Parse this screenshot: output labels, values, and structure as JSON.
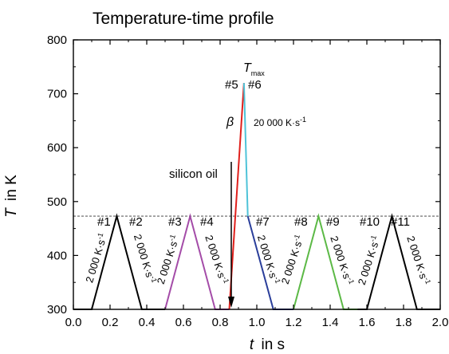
{
  "chart_data": {
    "type": "line",
    "title": "Temperature-time profile",
    "xlabel": {
      "italic": "t",
      "rest": "in s"
    },
    "ylabel": {
      "italic": "T",
      "rest": "in K"
    },
    "xlim": [
      0.0,
      2.0
    ],
    "ylim": [
      300,
      800
    ],
    "xticks": [
      "0.0",
      "0.2",
      "0.4",
      "0.6",
      "0.8",
      "1.0",
      "1.2",
      "1.4",
      "1.6",
      "1.8",
      "2.0"
    ],
    "yticks": [
      "300",
      "400",
      "500",
      "600",
      "700",
      "800"
    ],
    "reference_line": {
      "y": 473,
      "style": "dashed"
    },
    "series": [
      {
        "color": "#000000",
        "points": [
          [
            0.0,
            300
          ],
          [
            0.1,
            300
          ],
          [
            0.2365,
            473
          ],
          [
            0.373,
            300
          ],
          [
            0.5,
            300
          ]
        ]
      },
      {
        "color": "#a44ca8",
        "points": [
          [
            0.5,
            300
          ],
          [
            0.5,
            300
          ],
          [
            0.6365,
            473
          ],
          [
            0.773,
            300
          ],
          [
            0.85,
            300
          ]
        ]
      },
      {
        "color": "#e0201c",
        "points": [
          [
            0.85,
            300
          ],
          [
            0.93,
            720
          ]
        ]
      },
      {
        "color": "#4ec3d8",
        "points": [
          [
            0.93,
            720
          ],
          [
            0.951,
            473
          ]
        ]
      },
      {
        "color": "#2a3e9a",
        "points": [
          [
            0.951,
            473
          ],
          [
            1.09,
            300
          ],
          [
            1.2,
            300
          ]
        ]
      },
      {
        "color": "#5cb946",
        "points": [
          [
            1.2,
            300
          ],
          [
            1.2,
            300
          ],
          [
            1.3365,
            473
          ],
          [
            1.473,
            300
          ],
          [
            1.55,
            300
          ]
        ]
      },
      {
        "color": "#000000",
        "points": [
          [
            1.55,
            300
          ],
          [
            1.6,
            300
          ],
          [
            1.7365,
            473
          ],
          [
            1.873,
            300
          ],
          [
            2.0,
            300
          ]
        ]
      }
    ],
    "annotations": {
      "segments": [
        "#1",
        "#2",
        "#3",
        "#4",
        "#5",
        "#6",
        "#7",
        "#8",
        "#9",
        "#10",
        "#11"
      ],
      "rate_slow": "2 000 K·s",
      "rate_exp": "-1",
      "rate_fast": "20 000 K·s",
      "beta": "β",
      "tmax_main": "T",
      "tmax_sub": "max",
      "silicon_oil": "silicon oil"
    }
  }
}
